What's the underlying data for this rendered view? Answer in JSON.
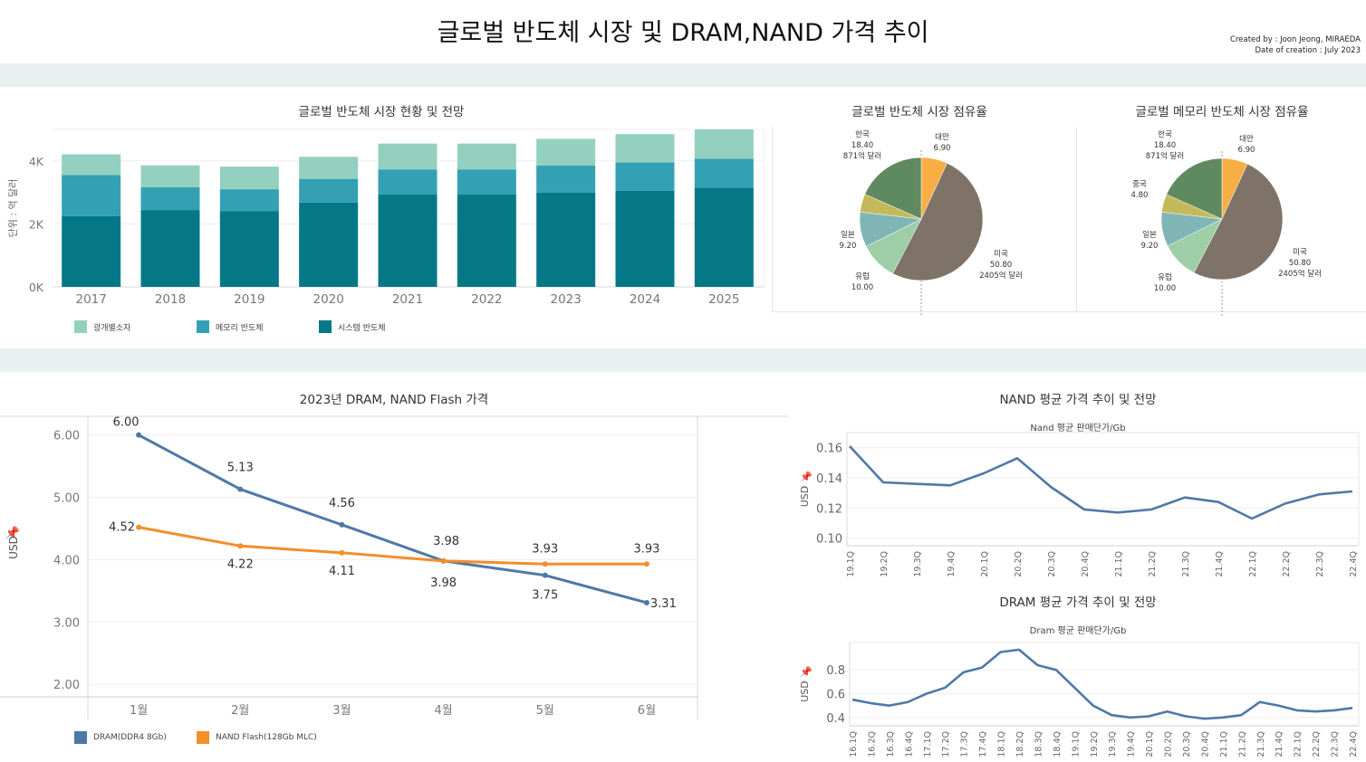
{
  "header": {
    "title": "글로벌 반도체 시장 및 DRAM,NAND 가격 추이",
    "created_by": "Created by : Joon Jeong, MIRAEDA",
    "date_of_creation": "Date of creation : July 2023"
  },
  "panels": {
    "market": {
      "title": "글로벌 반도체 시장 현황 및 전망"
    },
    "share_all": {
      "title": "글로벌 반도체 시장 점유율"
    },
    "share_memory": {
      "title": "글로벌 메모리 반도체 시장 점유율"
    },
    "price_2023": {
      "title": "2023년 DRAM, NAND Flash 가격"
    },
    "nand_trend": {
      "title": "NAND 평균 가격 추이 및 전망",
      "subtitle": "Nand 평균 판매단가/Gb"
    },
    "dram_trend": {
      "title": "DRAM 평균 가격 추이 및 전망",
      "subtitle": "Dram 평균 판매단가/Gb"
    }
  },
  "colors": {
    "optical": "#93d0bf",
    "memory": "#33a1b3",
    "system": "#047887",
    "dram": "#4e79a7",
    "nand_flash": "#f28e2b",
    "trend_line": "#4e79a7",
    "pie_taiwan": "#f9ad45",
    "pie_usa": "#7f7368",
    "pie_europe": "#9dcea5",
    "pie_japan": "#7fb6b5",
    "pie_china": "#c4b95a",
    "pie_korea": "#5f8a5f",
    "band": "#e8f1ef"
  },
  "chart_data": [
    {
      "id": "market",
      "type": "bar",
      "stacked": true,
      "ylabel": "단위 : 억 달러",
      "ylim": [
        0,
        5000
      ],
      "yticks": [
        "0K",
        "2K",
        "4K"
      ],
      "categories": [
        "2017",
        "2018",
        "2019",
        "2020",
        "2021",
        "2022",
        "2023",
        "2024",
        "2025"
      ],
      "series": [
        {
          "name": "시스템 반도체",
          "values": [
            2250,
            2440,
            2400,
            2680,
            2930,
            2930,
            2990,
            3050,
            3150
          ]
        },
        {
          "name": "메모리 반도체",
          "values": [
            1300,
            720,
            700,
            750,
            800,
            800,
            860,
            900,
            920
          ]
        },
        {
          "name": "광개별소자",
          "values": [
            660,
            700,
            720,
            700,
            820,
            820,
            850,
            900,
            930
          ]
        }
      ],
      "legend": "bottom"
    },
    {
      "id": "share_all",
      "type": "pie",
      "slices": [
        {
          "name": "대만",
          "value": 6.9,
          "label": [
            "대만",
            "6.90"
          ]
        },
        {
          "name": "미국",
          "value": 50.8,
          "label": [
            "미국",
            "50.80",
            "2405억 달러"
          ]
        },
        {
          "name": "유럽",
          "value": 10.0,
          "label": [
            "유럽",
            "10.00"
          ]
        },
        {
          "name": "일본",
          "value": 9.2,
          "label": [
            "일본",
            "9.20"
          ]
        },
        {
          "name": "중국",
          "value": 4.8,
          "label": []
        },
        {
          "name": "한국",
          "value": 18.4,
          "label": [
            "한국",
            "18.40",
            "871억 달러"
          ]
        }
      ]
    },
    {
      "id": "share_memory",
      "type": "pie",
      "slices": [
        {
          "name": "대만",
          "value": 6.9,
          "label": [
            "대만",
            "6.90"
          ]
        },
        {
          "name": "미국",
          "value": 50.8,
          "label": [
            "미국",
            "50.80",
            "2405억 달러"
          ]
        },
        {
          "name": "유럽",
          "value": 10.0,
          "label": [
            "유럽",
            "10.00"
          ]
        },
        {
          "name": "일본",
          "value": 9.2,
          "label": [
            "일본",
            "9.20"
          ]
        },
        {
          "name": "중국",
          "value": 4.8,
          "label": [
            "중국",
            "4.80"
          ]
        },
        {
          "name": "한국",
          "value": 18.4,
          "label": [
            "한국",
            "18.40",
            "871억 달러"
          ]
        }
      ]
    },
    {
      "id": "price_2023",
      "type": "line",
      "ylabel": "USD",
      "ylim": [
        1.8,
        6.3
      ],
      "yticks": [
        "2.00",
        "3.00",
        "4.00",
        "5.00",
        "6.00"
      ],
      "categories": [
        "1월",
        "2월",
        "3월",
        "4월",
        "5월",
        "6월"
      ],
      "series": [
        {
          "name": "DRAM(DDR4 8Gb)",
          "values": [
            6.0,
            5.13,
            4.56,
            3.98,
            3.75,
            3.31
          ],
          "labels": [
            "6.00",
            "5.13",
            "4.56",
            "3.98",
            "3.75",
            "3.31"
          ]
        },
        {
          "name": "NAND Flash(128Gb MLC)",
          "values": [
            4.52,
            4.22,
            4.11,
            3.98,
            3.93,
            3.93
          ],
          "labels": [
            "4.52",
            "4.22",
            "4.11",
            "3.98",
            "3.93",
            "3.93"
          ]
        }
      ],
      "legend": "bottom"
    },
    {
      "id": "nand_trend",
      "type": "line",
      "ylabel": "USD",
      "ylim": [
        0.095,
        0.17
      ],
      "yticks": [
        "0.10",
        "0.12",
        "0.14",
        "0.16"
      ],
      "categories": [
        "19.1Q",
        "19.2Q",
        "19.3Q",
        "19.4Q",
        "20.1Q",
        "20.2Q",
        "20.3Q",
        "20.4Q",
        "21.1Q",
        "21.2Q",
        "21.3Q",
        "21.4Q",
        "22.1Q",
        "22.2Q",
        "22.3Q",
        "22.4Q"
      ],
      "series": [
        {
          "name": "Nand 평균 판매단가/Gb",
          "values": [
            0.161,
            0.137,
            0.136,
            0.135,
            0.143,
            0.153,
            0.134,
            0.119,
            0.117,
            0.119,
            0.127,
            0.124,
            0.113,
            0.123,
            0.129,
            0.131
          ]
        }
      ]
    },
    {
      "id": "dram_trend",
      "type": "line",
      "ylabel": "USD",
      "ylim": [
        0.33,
        1.03
      ],
      "yticks": [
        "0.4",
        "0.6",
        "0.8"
      ],
      "categories": [
        "16.1Q",
        "16.2Q",
        "16.3Q",
        "16.4Q",
        "17.1Q",
        "17.2Q",
        "17.3Q",
        "17.4Q",
        "18.1Q",
        "18.2Q",
        "18.3Q",
        "18.4Q",
        "19.1Q",
        "19.2Q",
        "19.3Q",
        "19.4Q",
        "20.1Q",
        "20.2Q",
        "20.3Q",
        "20.4Q",
        "21.1Q",
        "21.2Q",
        "21.3Q",
        "21.4Q",
        "22.1Q",
        "22.2Q",
        "22.3Q",
        "22.4Q"
      ],
      "series": [
        {
          "name": "Dram 평균 판매단가/Gb",
          "values": [
            0.55,
            0.52,
            0.5,
            0.53,
            0.6,
            0.65,
            0.78,
            0.82,
            0.95,
            0.97,
            0.84,
            0.8,
            0.65,
            0.5,
            0.42,
            0.4,
            0.41,
            0.45,
            0.41,
            0.39,
            0.4,
            0.42,
            0.53,
            0.5,
            0.46,
            0.45,
            0.46,
            0.48
          ]
        }
      ]
    }
  ]
}
